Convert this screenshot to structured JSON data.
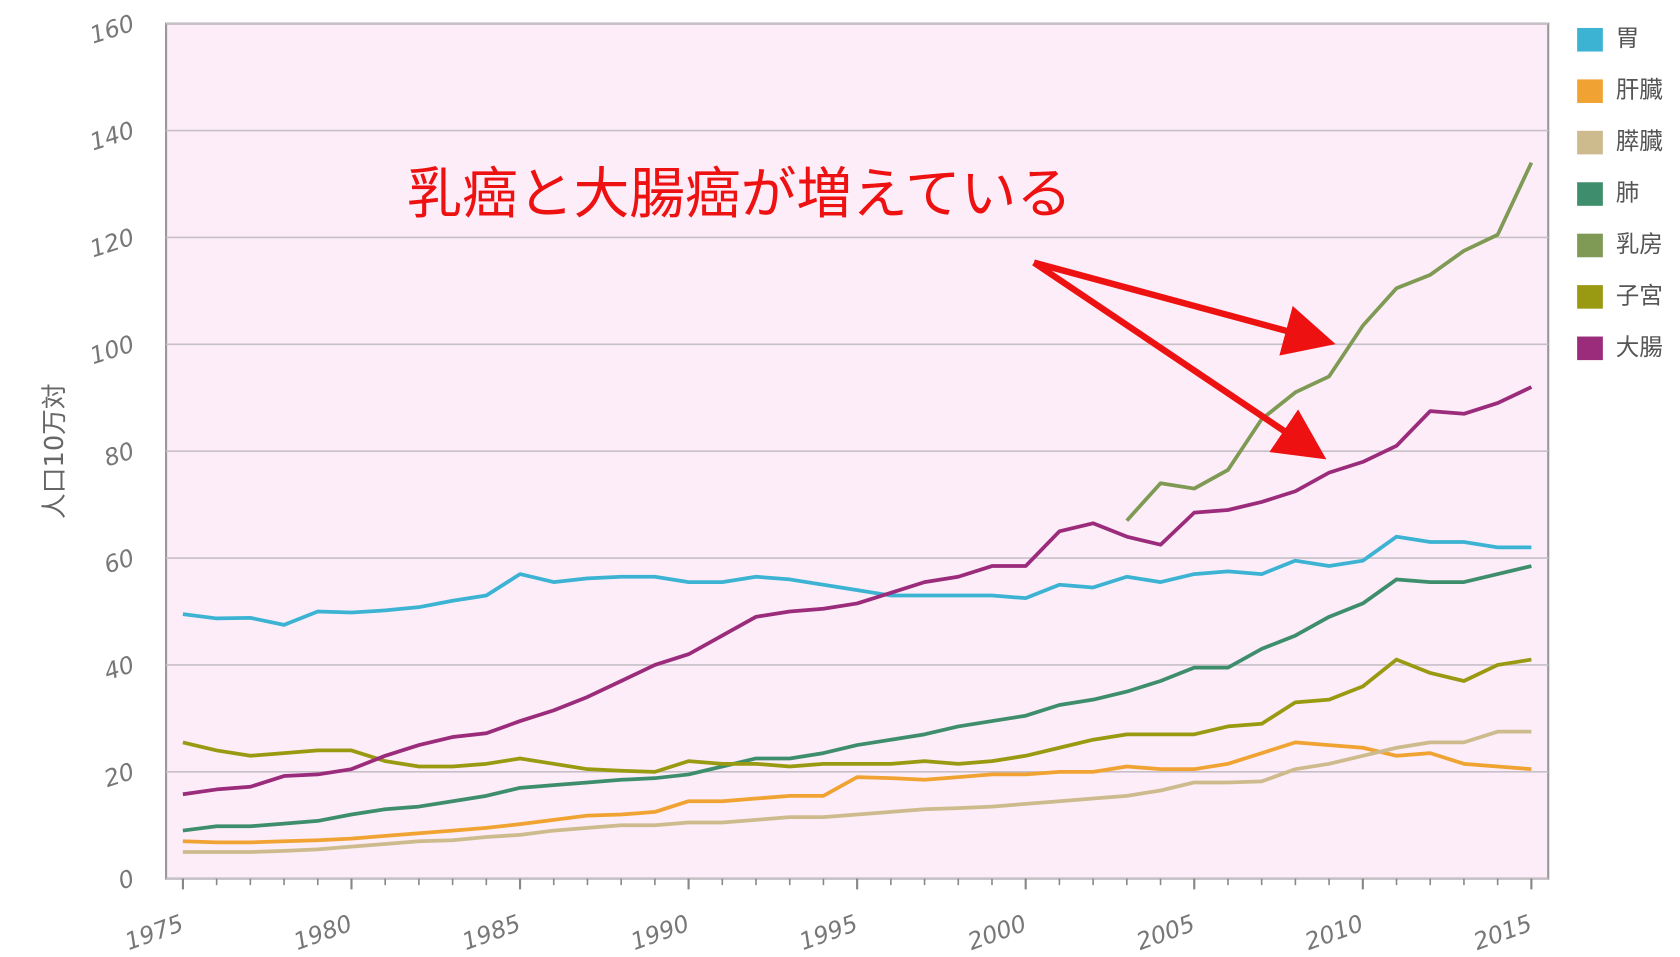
{
  "chart_data": {
    "type": "line",
    "annotation": "乳癌と大腸癌が増えている",
    "y_label": "人口10万対",
    "x": [
      1975,
      1976,
      1977,
      1978,
      1979,
      1980,
      1981,
      1982,
      1983,
      1984,
      1985,
      1986,
      1987,
      1988,
      1989,
      1990,
      1991,
      1992,
      1993,
      1994,
      1995,
      1996,
      1997,
      1998,
      1999,
      2000,
      2001,
      2002,
      2003,
      2004,
      2005,
      2006,
      2007,
      2008,
      2009,
      2010,
      2011,
      2012,
      2013,
      2014,
      2015
    ],
    "xlim": [
      1974.5,
      2015.5
    ],
    "xticks": [
      1975,
      1980,
      1985,
      1990,
      1995,
      2000,
      2005,
      2010,
      2015
    ],
    "ylim": [
      0,
      160
    ],
    "yticks": [
      0,
      20,
      40,
      60,
      80,
      100,
      120,
      140,
      160
    ],
    "grid": true,
    "legend": "right",
    "series": [
      {
        "name": "胃",
        "color": "#3db3d3",
        "values": [
          49.5,
          48.7,
          48.8,
          47.5,
          50,
          49.8,
          50.2,
          50.8,
          52,
          53,
          57,
          55.5,
          56.2,
          56.5,
          56.5,
          55.5,
          55.5,
          56.5,
          56,
          55,
          54,
          53,
          53,
          53,
          53,
          52.5,
          55,
          54.5,
          56.5,
          55.5,
          57,
          57.5,
          57,
          59.5,
          58.5,
          59.5,
          64,
          63,
          63,
          62,
          62
        ]
      },
      {
        "name": "肝臓",
        "color": "#f0a332",
        "values": [
          7,
          6.8,
          6.8,
          7,
          7.2,
          7.5,
          8,
          8.5,
          9,
          9.5,
          10.2,
          11,
          11.8,
          12,
          12.5,
          14.5,
          14.5,
          15,
          15.5,
          15.5,
          19,
          18.8,
          18.5,
          19,
          19.5,
          19.5,
          20,
          20,
          21,
          20.5,
          20.5,
          21.5,
          23.5,
          25.5,
          25,
          24.5,
          23,
          23.5,
          21.5,
          21,
          20.5
        ]
      },
      {
        "name": "膵臓",
        "color": "#cdbb8e",
        "values": [
          5,
          5,
          5,
          5.2,
          5.5,
          6,
          6.5,
          7,
          7.2,
          7.8,
          8.2,
          9,
          9.5,
          10,
          10,
          10.5,
          10.5,
          11,
          11.5,
          11.5,
          12,
          12.5,
          13,
          13.2,
          13.5,
          14,
          14.5,
          15,
          15.5,
          16.5,
          18,
          18,
          18.2,
          20.5,
          21.5,
          23,
          24.5,
          25.5,
          25.5,
          27.5,
          27.5
        ]
      },
      {
        "name": "肺",
        "color": "#3e8e6d",
        "values": [
          9,
          9.8,
          9.8,
          10.3,
          10.8,
          12,
          13,
          13.5,
          14.5,
          15.5,
          17,
          17.5,
          18,
          18.5,
          18.8,
          19.5,
          21,
          22.5,
          22.5,
          23.5,
          25,
          26,
          27,
          28.5,
          29.5,
          30.5,
          32.5,
          33.5,
          35,
          37,
          39.5,
          39.5,
          43,
          45.5,
          49,
          51.5,
          56,
          55.5,
          55.5,
          57,
          58.5
        ]
      },
      {
        "name": "乳房",
        "color": "#7f9a55",
        "values": [
          null,
          null,
          null,
          null,
          null,
          null,
          null,
          null,
          null,
          null,
          null,
          null,
          null,
          null,
          null,
          null,
          null,
          null,
          null,
          null,
          null,
          null,
          null,
          null,
          null,
          null,
          null,
          null,
          67,
          74,
          73,
          76.5,
          86,
          91,
          94,
          103.5,
          110.5,
          113,
          117.5,
          120.5,
          134
        ]
      },
      {
        "name": "子宮",
        "color": "#999a12",
        "values": [
          25.5,
          24,
          23,
          23.5,
          24,
          24,
          22,
          21,
          21,
          21.5,
          22.5,
          21.5,
          20.5,
          20.2,
          20,
          22,
          21.5,
          21.5,
          21,
          21.5,
          21.5,
          21.5,
          22,
          21.5,
          22,
          23,
          24.5,
          26,
          27,
          27,
          27,
          28.5,
          29,
          33,
          33.5,
          36,
          41,
          38.5,
          37,
          40,
          41
        ]
      },
      {
        "name": "大腸",
        "color": "#9b2b7b",
        "values": [
          15.8,
          16.7,
          17.2,
          19.2,
          19.5,
          20.5,
          23,
          25,
          26.5,
          27.2,
          29.5,
          31.5,
          34,
          37,
          40,
          42,
          45.5,
          49,
          50,
          50.5,
          51.5,
          53.5,
          55.5,
          56.5,
          58.5,
          58.5,
          65,
          66.5,
          64,
          62.5,
          68.5,
          69,
          70.5,
          72.5,
          76,
          78,
          81,
          87.5,
          87,
          89,
          92
        ]
      }
    ]
  }
}
